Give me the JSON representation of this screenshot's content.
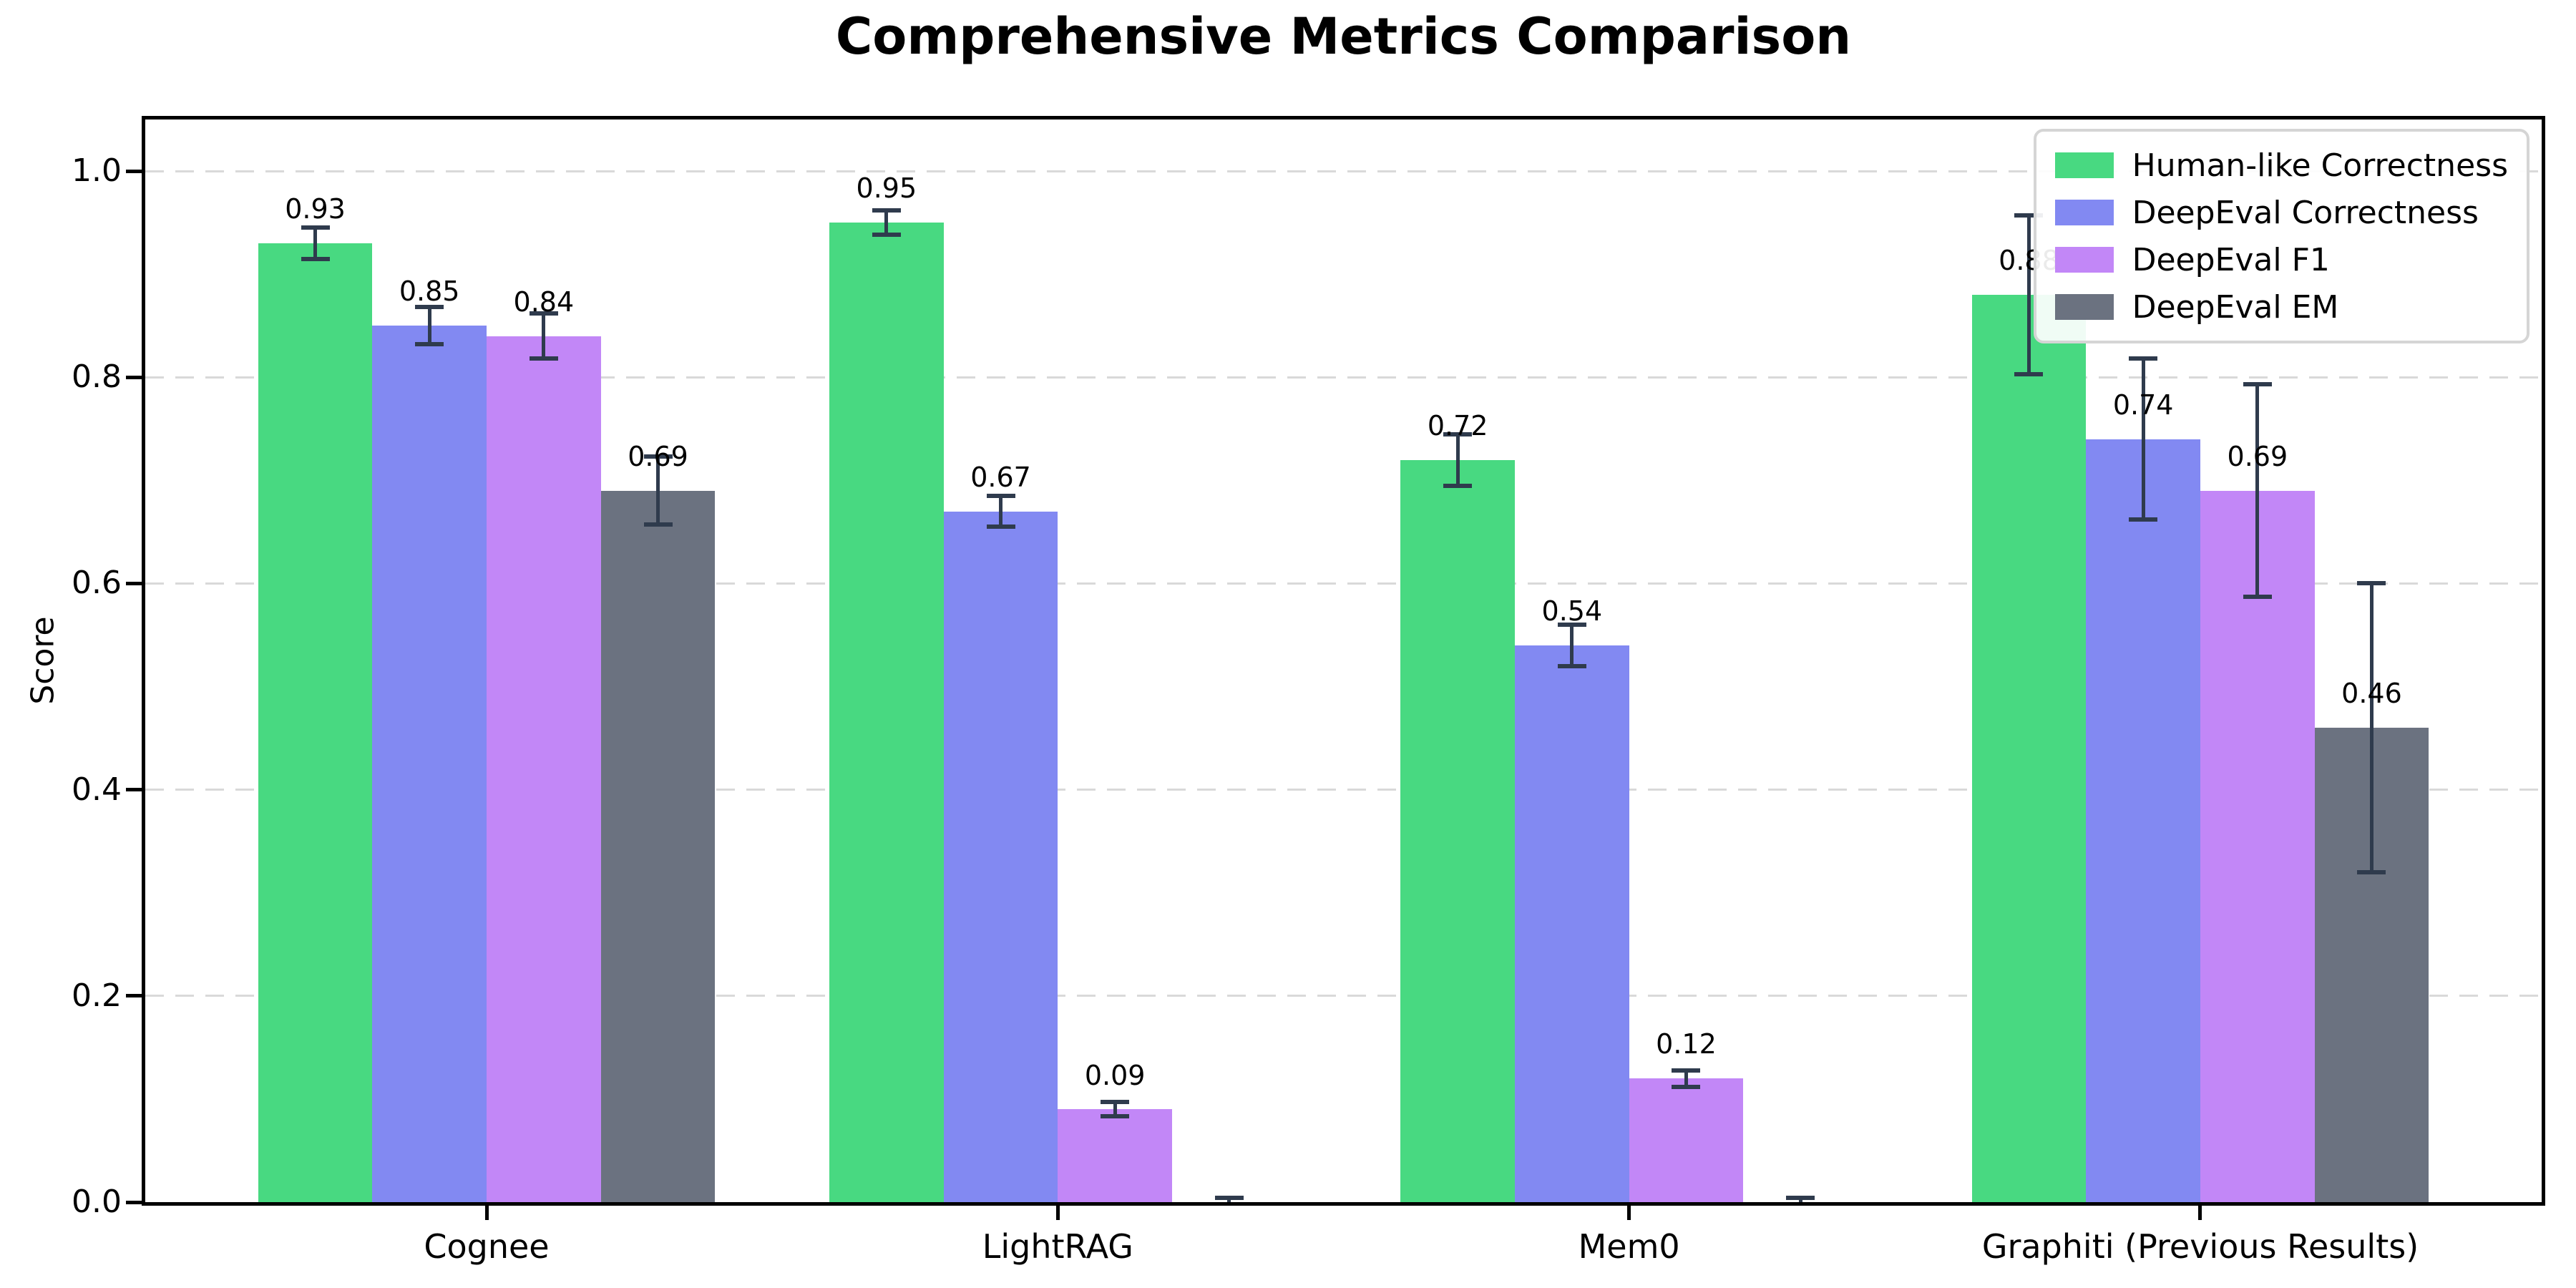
{
  "chart_data": {
    "type": "bar",
    "title": "Comprehensive Metrics Comparison",
    "ylabel": "Score",
    "xlabel": "",
    "categories": [
      "Cognee",
      "LightRAG",
      "Mem0",
      "Graphiti (Previous Results)"
    ],
    "series": [
      {
        "name": "Human-like Correctness",
        "color": "#48d981",
        "values": [
          0.93,
          0.95,
          0.72,
          0.88
        ],
        "errors": [
          0.015,
          0.012,
          0.025,
          0.077
        ],
        "value_labels": [
          "0.93",
          "0.95",
          "0.72",
          "0.88"
        ]
      },
      {
        "name": "DeepEval Correctness",
        "color": "#8289f2",
        "values": [
          0.85,
          0.67,
          0.54,
          0.74
        ],
        "errors": [
          0.018,
          0.015,
          0.02,
          0.078
        ],
        "value_labels": [
          "0.85",
          "0.67",
          "0.54",
          "0.74"
        ]
      },
      {
        "name": "DeepEval F1",
        "color": "#c287f7",
        "values": [
          0.84,
          0.09,
          0.12,
          0.69
        ],
        "errors": [
          0.022,
          0.007,
          0.008,
          0.103
        ],
        "value_labels": [
          "0.84",
          "0.09",
          "0.12",
          "0.69"
        ]
      },
      {
        "name": "DeepEval EM",
        "color": "#6b7280",
        "values": [
          0.69,
          0.0,
          0.0,
          0.46
        ],
        "errors": [
          0.033,
          0.004,
          0.004,
          0.14
        ],
        "value_labels": [
          "0.69",
          "",
          "",
          "0.46"
        ]
      }
    ],
    "ytick_labels": [
      "0.0",
      "0.2",
      "0.4",
      "0.6",
      "0.8",
      "1.0"
    ],
    "yticks": [
      0.0,
      0.2,
      0.4,
      0.6,
      0.8,
      1.0
    ],
    "ylim": [
      0,
      1.05
    ],
    "grid": "dashed-horizontal",
    "legend_position": "upper-right",
    "style": {
      "error_bar_color": "#2f3b4d",
      "grid_color": "#d9d9d9",
      "axis_color": "#000000",
      "background": "#ffffff",
      "legend_border": "#d5d5d5",
      "text_color": "#000000"
    }
  }
}
